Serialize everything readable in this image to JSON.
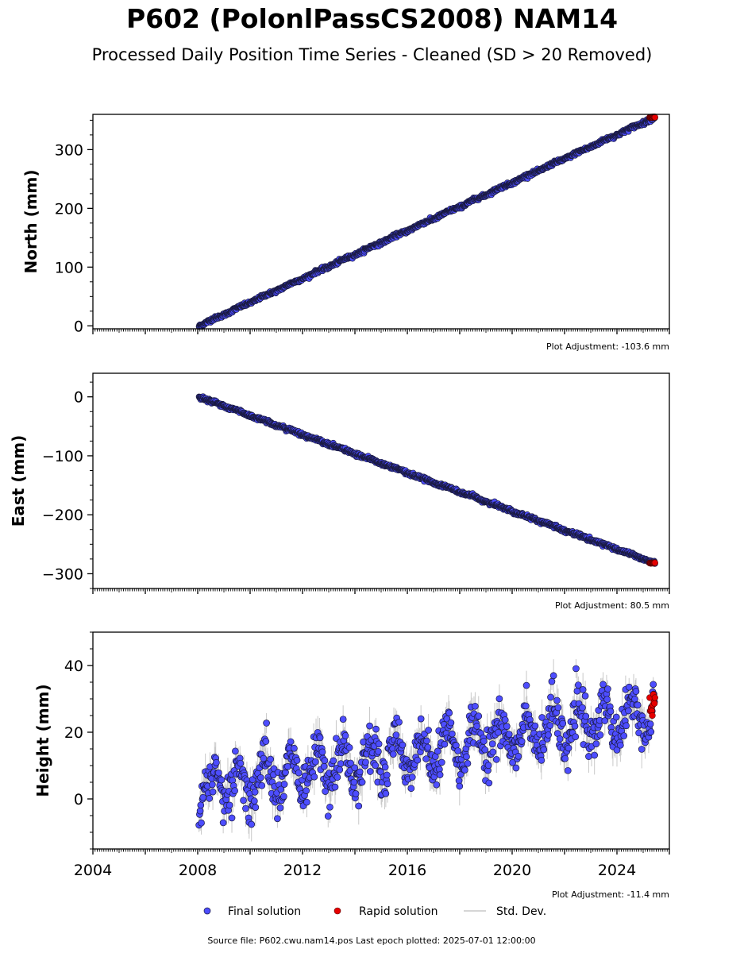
{
  "title": "P602 (PolonlPassCS2008) NAM14",
  "subtitle": "Processed Daily Position Time Series - Cleaned (SD > 20 Removed)",
  "colors": {
    "final": "#4d4dff",
    "final_edge": "#1a1a40",
    "rapid": "#e60000",
    "stddev": "#c8c8c8"
  },
  "legend": {
    "final": "Final solution",
    "rapid": "Rapid solution",
    "stddev": "Std. Dev."
  },
  "footer": "Source file: P602.cwu.nam14.pos  Last epoch plotted: 2025-07-01 12:00:00",
  "chart_data": [
    {
      "type": "scatter",
      "ylabel": "North (mm)",
      "adjustment": "Plot Adjustment: -103.6 mm",
      "xlim": [
        2004,
        2026
      ],
      "ylim": [
        -5,
        360
      ],
      "yticks": [
        0,
        100,
        200,
        300
      ],
      "ytick_labels": [
        "0",
        "100",
        "200",
        "300"
      ],
      "trend": {
        "start_year": 2008.05,
        "end_year": 2025.45,
        "start_value": 0,
        "end_value": 355,
        "noise_mm": 1.5,
        "seasonal_mm": 0.8
      },
      "rapid": {
        "start_year": 2025.25,
        "end_year": 2025.45,
        "value": 355
      }
    },
    {
      "type": "scatter",
      "ylabel": "East (mm)",
      "adjustment": "Plot Adjustment: 80.5 mm",
      "xlim": [
        2004,
        2026
      ],
      "ylim": [
        -325,
        40
      ],
      "yticks": [
        0,
        -100,
        -200,
        -300
      ],
      "ytick_labels": [
        "0",
        "−100",
        "−200",
        "−300"
      ],
      "trend": {
        "start_year": 2008.05,
        "end_year": 2025.45,
        "start_value": 0,
        "end_value": -282,
        "noise_mm": 1.5,
        "seasonal_mm": 0.8
      },
      "rapid": {
        "start_year": 2025.25,
        "end_year": 2025.45,
        "value": -282
      }
    },
    {
      "type": "scatter",
      "ylabel": "Height (mm)",
      "adjustment": "Plot Adjustment: -11.4 mm",
      "xlim": [
        2004,
        2026
      ],
      "ylim": [
        -15,
        50
      ],
      "yticks": [
        0,
        20,
        40
      ],
      "ytick_labels": [
        "0",
        "20",
        "40"
      ],
      "xticks": [
        2004,
        2008,
        2012,
        2016,
        2020,
        2024
      ],
      "xtick_labels": [
        "2004",
        "2008",
        "2012",
        "2016",
        "2020",
        "2024"
      ],
      "trend": {
        "start_year": 2008.05,
        "end_year": 2025.45,
        "start_value": 3,
        "end_value": 26,
        "noise_mm": 3.5,
        "seasonal_mm": 6
      },
      "rapid": {
        "start_year": 2025.25,
        "end_year": 2025.45,
        "value": 28,
        "spread": 3.5
      }
    }
  ]
}
